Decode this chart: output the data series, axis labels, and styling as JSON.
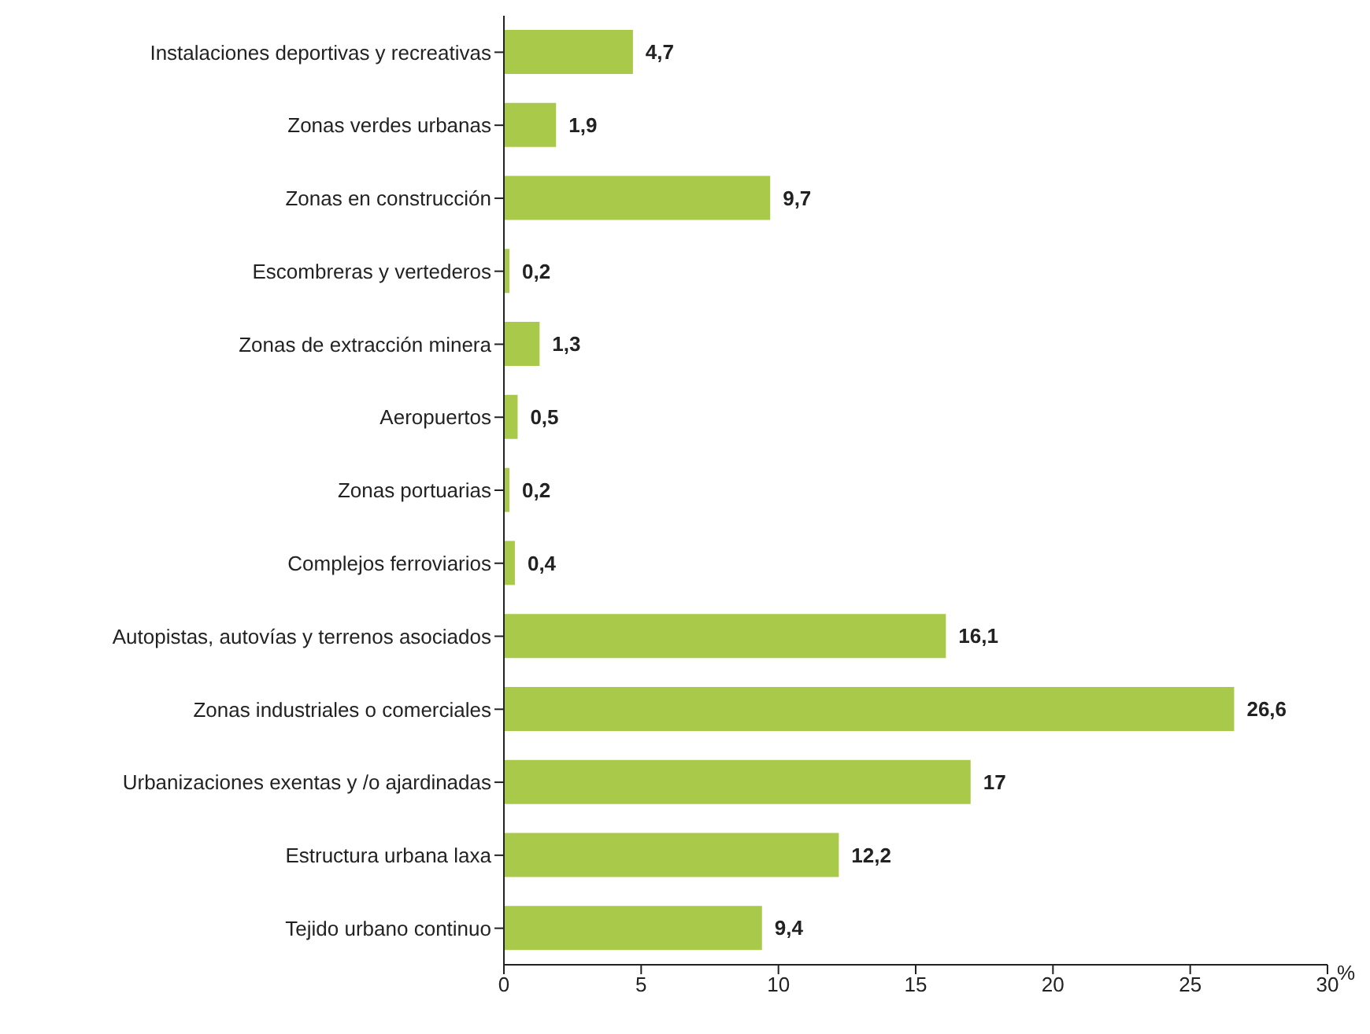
{
  "chart_data": {
    "type": "bar",
    "orientation": "horizontal",
    "categories": [
      "Instalaciones deportivas y recreativas",
      "Zonas verdes urbanas",
      "Zonas en construcción",
      "Escombreras y vertederos",
      "Zonas de extracción minera",
      "Aeropuertos",
      "Zonas portuarias",
      "Complejos ferroviarios",
      "Autopistas, autovías y terrenos asociados",
      "Zonas industriales o comerciales",
      "Urbanizaciones exentas y /o ajardinadas",
      "Estructura urbana laxa",
      "Tejido urbano continuo"
    ],
    "values": [
      4.7,
      1.9,
      9.7,
      0.2,
      1.3,
      0.5,
      0.2,
      0.4,
      16.1,
      26.6,
      17,
      12.2,
      9.4
    ],
    "value_labels": [
      "4,7",
      "1,9",
      "9,7",
      "0,2",
      "1,3",
      "0,5",
      "0,2",
      "0,4",
      "16,1",
      "26,6",
      "17",
      "12,2",
      "9,4"
    ],
    "color": "#a9c94a",
    "xlabel": "%",
    "xlim": [
      0,
      30
    ],
    "xticks": [
      0,
      5,
      10,
      15,
      20,
      25,
      30
    ],
    "grid": false,
    "legend": false
  }
}
